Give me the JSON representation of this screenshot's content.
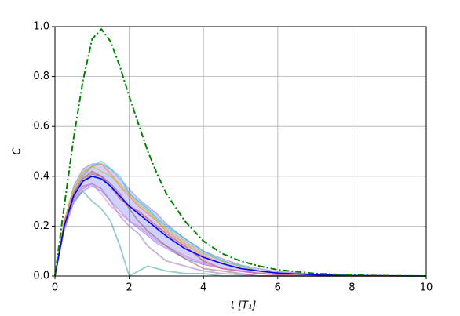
{
  "chart_data": {
    "type": "line",
    "xlabel": "t [T₁]",
    "ylabel": "C",
    "x": [
      0,
      0.25,
      0.5,
      0.75,
      1,
      1.25,
      1.5,
      1.75,
      2,
      2.25,
      2.5,
      2.75,
      3,
      3.5,
      4,
      4.5,
      5,
      5.5,
      6,
      7,
      8,
      9,
      10
    ],
    "xlim": [
      0,
      10
    ],
    "ylim": [
      0,
      1
    ],
    "xticks": [
      0,
      2,
      4,
      6,
      8,
      10
    ],
    "yticks": [
      {
        "value": 0,
        "label": "0.0"
      },
      0.2,
      0.4,
      0.6,
      0.8,
      {
        "value": 1,
        "label": "1.0"
      }
    ],
    "grid": true,
    "band": {
      "color": "#0000ff",
      "lower": [
        0,
        0.18,
        0.29,
        0.34,
        0.36,
        0.34,
        0.3,
        0.26,
        0.22,
        0.19,
        0.16,
        0.13,
        0.11,
        0.07,
        0.045,
        0.03,
        0.018,
        0.01,
        0.006,
        0.002,
        0.001,
        0,
        0
      ],
      "upper": [
        0,
        0.22,
        0.36,
        0.43,
        0.45,
        0.45,
        0.43,
        0.39,
        0.35,
        0.31,
        0.28,
        0.25,
        0.21,
        0.15,
        0.1,
        0.07,
        0.045,
        0.03,
        0.018,
        0.008,
        0.003,
        0.001,
        0
      ]
    },
    "series": [
      {
        "color": "#17becf",
        "style": "faint",
        "values": [
          0,
          0.2,
          0.33,
          0.4,
          0.44,
          0.46,
          0.43,
          0.4,
          0.33,
          0.3,
          0.27,
          0.23,
          0.2,
          0.15,
          0.1,
          0.06,
          0.04,
          0.02,
          0.01,
          0.005,
          0,
          0,
          0
        ]
      },
      {
        "color": "#2a9d8f",
        "style": "faint",
        "values": [
          0,
          0.2,
          0.3,
          0.34,
          0.3,
          0.27,
          0.22,
          0.12,
          0,
          0.02,
          0.04,
          0.03,
          0.02,
          0.01,
          0.01,
          0,
          0,
          0,
          0,
          0,
          0,
          0,
          0
        ]
      },
      {
        "color": "#d62728",
        "style": "faint",
        "values": [
          0,
          0.21,
          0.33,
          0.39,
          0.42,
          0.4,
          0.36,
          0.31,
          0.28,
          0.26,
          0.23,
          0.2,
          0.17,
          0.12,
          0.06,
          0.03,
          0.02,
          0.01,
          0.005,
          0,
          0,
          0,
          0
        ]
      },
      {
        "color": "#9467bd",
        "style": "faint",
        "values": [
          0,
          0.2,
          0.31,
          0.36,
          0.37,
          0.35,
          0.3,
          0.24,
          0.2,
          0.17,
          0.12,
          0.09,
          0.06,
          0.04,
          0.02,
          0.01,
          0.005,
          0,
          0,
          0,
          0,
          0,
          0
        ]
      },
      {
        "color": "#ff7f0e",
        "style": "faint",
        "values": [
          0,
          0.22,
          0.34,
          0.41,
          0.44,
          0.45,
          0.41,
          0.36,
          0.32,
          0.28,
          0.25,
          0.22,
          0.18,
          0.13,
          0.08,
          0.05,
          0.03,
          0.02,
          0.01,
          0.004,
          0.001,
          0,
          0
        ]
      },
      {
        "color": "#bcbd22",
        "style": "faint",
        "values": [
          0,
          0.21,
          0.35,
          0.42,
          0.44,
          0.42,
          0.4,
          0.37,
          0.33,
          0.29,
          0.26,
          0.22,
          0.19,
          0.14,
          0.09,
          0.06,
          0.04,
          0.02,
          0.01,
          0.004,
          0,
          0,
          0
        ]
      },
      {
        "color": "#e377c2",
        "style": "faint",
        "values": [
          0,
          0.19,
          0.3,
          0.35,
          0.37,
          0.33,
          0.28,
          0.25,
          0.22,
          0.2,
          0.17,
          0.14,
          0.12,
          0.08,
          0.05,
          0.03,
          0.02,
          0.01,
          0.005,
          0,
          0,
          0,
          0
        ]
      },
      {
        "color": "#8c564b",
        "style": "faint",
        "values": [
          0,
          0.2,
          0.32,
          0.38,
          0.41,
          0.4,
          0.37,
          0.33,
          0.27,
          0.22,
          0.18,
          0.15,
          0.12,
          0.07,
          0.03,
          0.02,
          0.01,
          0,
          0,
          0,
          0,
          0,
          0
        ]
      },
      {
        "color": "#0000ff",
        "style": "solid",
        "values": [
          0,
          0.2,
          0.32,
          0.38,
          0.4,
          0.39,
          0.36,
          0.32,
          0.28,
          0.25,
          0.22,
          0.19,
          0.16,
          0.11,
          0.075,
          0.05,
          0.03,
          0.02,
          0.012,
          0.005,
          0.002,
          0.001,
          0
        ]
      },
      {
        "color": "#008000",
        "style": "dashdot",
        "values": [
          0,
          0.28,
          0.55,
          0.78,
          0.95,
          0.99,
          0.94,
          0.84,
          0.72,
          0.61,
          0.5,
          0.41,
          0.33,
          0.22,
          0.14,
          0.09,
          0.06,
          0.04,
          0.025,
          0.01,
          0.004,
          0.001,
          0
        ]
      }
    ]
  }
}
